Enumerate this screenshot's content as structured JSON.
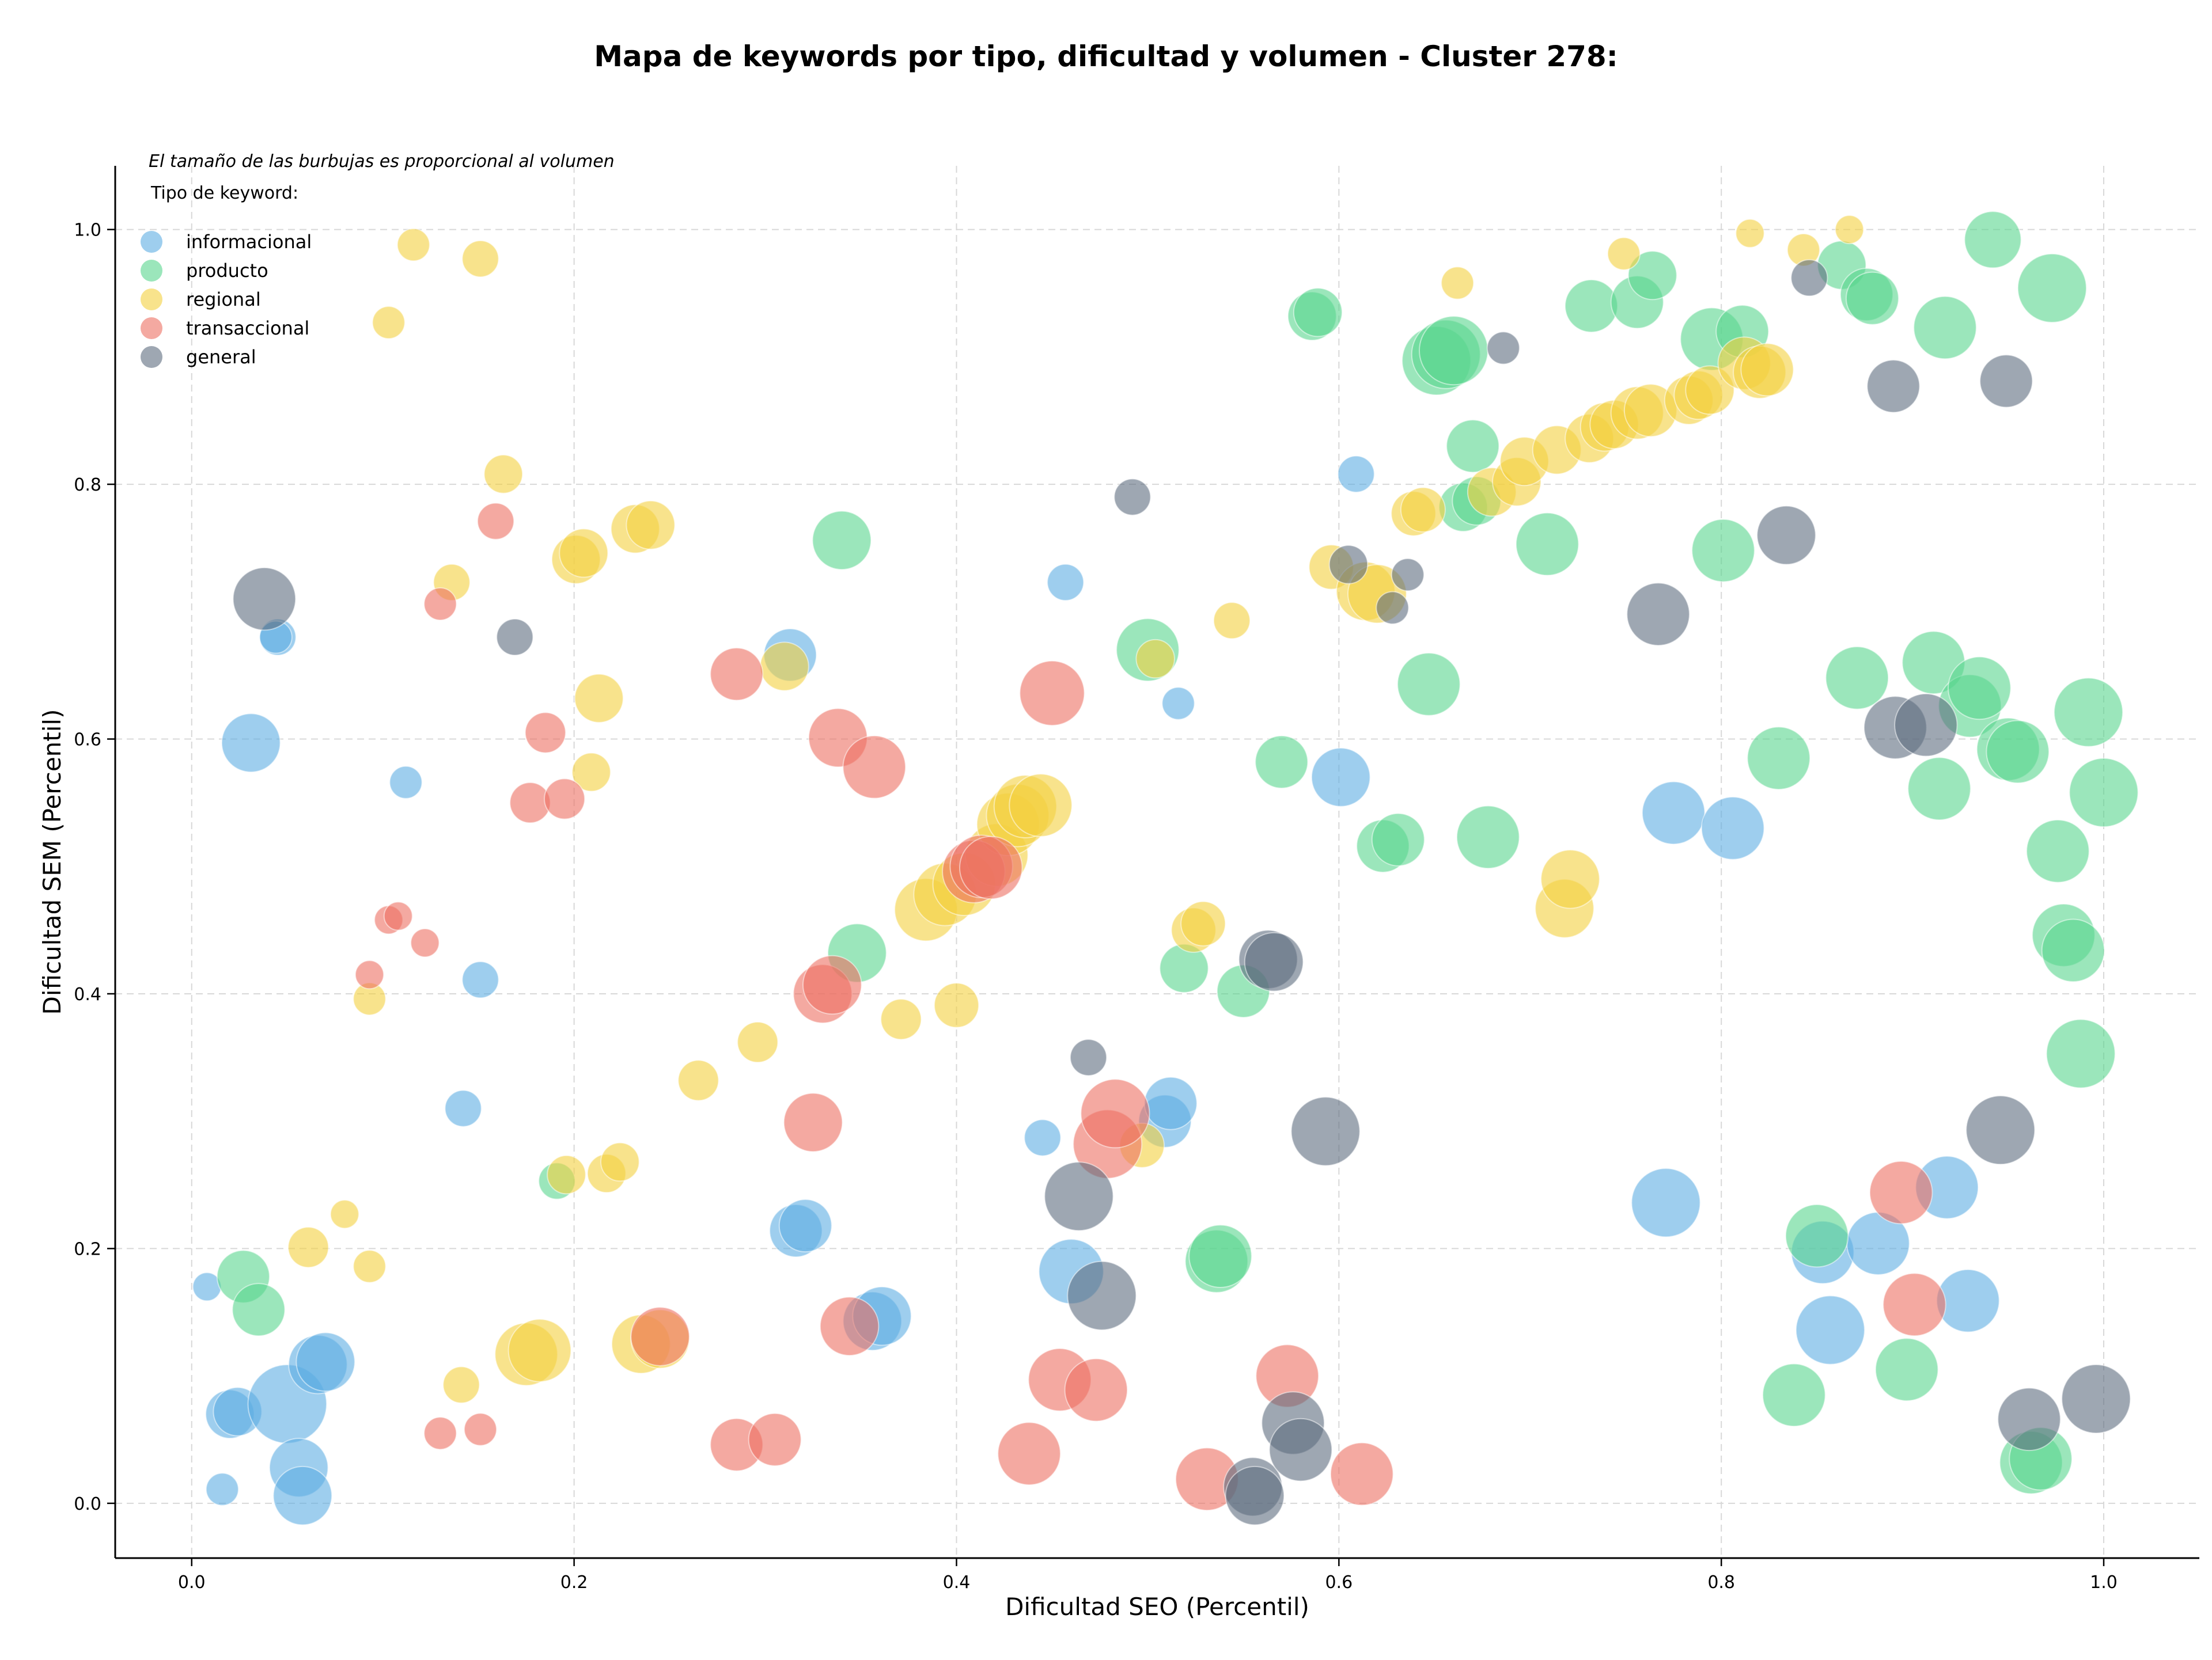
{
  "chart_data": {
    "type": "scatter",
    "title": "Mapa de keywords por tipo, dificultad y volumen - Cluster 278:",
    "xlabel": "Dificultad SEO (Percentil)",
    "ylabel": "Dificultad SEM (Percentil)",
    "xlim": [
      -0.04,
      1.05
    ],
    "ylim": [
      -0.043,
      1.05
    ],
    "x_ticks": [
      "0.0",
      "0.2",
      "0.4",
      "0.6",
      "0.8",
      "1.0"
    ],
    "y_ticks": [
      "0.0",
      "0.2",
      "0.4",
      "0.6",
      "0.8",
      "1.0"
    ],
    "grid": true,
    "size_note": "El tamaño de las burbujas es proporcional al volumen",
    "legend_title": "Tipo de keyword:",
    "legend_position": "top-left",
    "series": [
      {
        "name": "informacional",
        "color": "#5DADE2",
        "points": [
          [
            0.008,
            0.17,
            10
          ],
          [
            0.016,
            0.011,
            12
          ],
          [
            0.02,
            0.07,
            20
          ],
          [
            0.024,
            0.072,
            20
          ],
          [
            0.031,
            0.597,
            25
          ],
          [
            0.045,
            0.68,
            14
          ],
          [
            0.044,
            0.68,
            12
          ],
          [
            0.05,
            0.078,
            35
          ],
          [
            0.056,
            0.028,
            25
          ],
          [
            0.058,
            0.006,
            25
          ],
          [
            0.066,
            0.109,
            25
          ],
          [
            0.07,
            0.111,
            25
          ],
          [
            0.112,
            0.566,
            12
          ],
          [
            0.142,
            0.31,
            14
          ],
          [
            0.151,
            0.411,
            14
          ],
          [
            0.313,
            0.666,
            22
          ],
          [
            0.316,
            0.214,
            22
          ],
          [
            0.321,
            0.218,
            22
          ],
          [
            0.356,
            0.143,
            25
          ],
          [
            0.361,
            0.147,
            25
          ],
          [
            0.445,
            0.287,
            14
          ],
          [
            0.457,
            0.723,
            14
          ],
          [
            0.46,
            0.182,
            28
          ],
          [
            0.509,
            0.3,
            22
          ],
          [
            0.512,
            0.314,
            22
          ],
          [
            0.516,
            0.628,
            12
          ],
          [
            0.601,
            0.57,
            25
          ],
          [
            0.609,
            0.808,
            14
          ],
          [
            0.771,
            0.236,
            30
          ],
          [
            0.775,
            0.542,
            27
          ],
          [
            0.806,
            0.53,
            27
          ],
          [
            0.853,
            0.197,
            27
          ],
          [
            0.857,
            0.136,
            30
          ],
          [
            0.882,
            0.204,
            27
          ],
          [
            0.918,
            0.248,
            27
          ],
          [
            0.929,
            0.159,
            27
          ]
        ]
      },
      {
        "name": "producto",
        "color": "#58D68D",
        "points": [
          [
            0.027,
            0.178,
            22
          ],
          [
            0.035,
            0.152,
            22
          ],
          [
            0.191,
            0.253,
            14
          ],
          [
            0.34,
            0.756,
            25
          ],
          [
            0.348,
            0.432,
            25
          ],
          [
            0.5,
            0.67,
            27
          ],
          [
            0.519,
            0.42,
            20
          ],
          [
            0.536,
            0.19,
            27
          ],
          [
            0.538,
            0.194,
            27
          ],
          [
            0.55,
            0.402,
            22
          ],
          [
            0.57,
            0.582,
            22
          ],
          [
            0.586,
            0.932,
            20
          ],
          [
            0.589,
            0.935,
            20
          ],
          [
            0.623,
            0.516,
            22
          ],
          [
            0.631,
            0.521,
            22
          ],
          [
            0.647,
            0.643,
            27
          ],
          [
            0.651,
            0.897,
            30
          ],
          [
            0.656,
            0.902,
            30
          ],
          [
            0.66,
            0.905,
            30
          ],
          [
            0.665,
            0.782,
            20
          ],
          [
            0.67,
            0.83,
            22
          ],
          [
            0.672,
            0.787,
            20
          ],
          [
            0.678,
            0.523,
            27
          ],
          [
            0.709,
            0.753,
            27
          ],
          [
            0.732,
            0.94,
            22
          ],
          [
            0.756,
            0.943,
            22
          ],
          [
            0.764,
            0.964,
            20
          ],
          [
            0.795,
            0.914,
            27
          ],
          [
            0.801,
            0.748,
            27
          ],
          [
            0.811,
            0.92,
            22
          ],
          [
            0.83,
            0.585,
            27
          ],
          [
            0.838,
            0.085,
            27
          ],
          [
            0.85,
            0.21,
            27
          ],
          [
            0.863,
            0.972,
            20
          ],
          [
            0.871,
            0.648,
            27
          ],
          [
            0.876,
            0.949,
            22
          ],
          [
            0.879,
            0.946,
            22
          ],
          [
            0.897,
            0.105,
            27
          ],
          [
            0.914,
            0.561,
            27
          ],
          [
            0.917,
            0.923,
            27
          ],
          [
            0.911,
            0.66,
            27
          ],
          [
            0.93,
            0.626,
            27
          ],
          [
            0.935,
            0.64,
            27
          ],
          [
            0.942,
            0.992,
            24
          ],
          [
            0.95,
            0.592,
            27
          ],
          [
            0.955,
            0.59,
            27
          ],
          [
            0.962,
            0.032,
            27
          ],
          [
            0.967,
            0.035,
            27
          ],
          [
            0.973,
            0.954,
            30
          ],
          [
            0.976,
            0.512,
            27
          ],
          [
            0.979,
            0.446,
            27
          ],
          [
            0.984,
            0.434,
            27
          ],
          [
            0.988,
            0.353,
            30
          ],
          [
            0.992,
            0.621,
            30
          ],
          [
            1.0,
            0.558,
            30
          ]
        ]
      },
      {
        "name": "regional",
        "color": "#F4D03F",
        "points": [
          [
            0.061,
            0.201,
            16
          ],
          [
            0.08,
            0.227,
            10
          ],
          [
            0.093,
            0.396,
            12
          ],
          [
            0.093,
            0.186,
            12
          ],
          [
            0.103,
            0.927,
            12
          ],
          [
            0.116,
            0.988,
            12
          ],
          [
            0.136,
            0.723,
            14
          ],
          [
            0.141,
            0.093,
            14
          ],
          [
            0.151,
            0.977,
            14
          ],
          [
            0.163,
            0.808,
            15
          ],
          [
            0.175,
            0.117,
            27
          ],
          [
            0.182,
            0.12,
            27
          ],
          [
            0.196,
            0.258,
            15
          ],
          [
            0.201,
            0.741,
            20
          ],
          [
            0.205,
            0.746,
            20
          ],
          [
            0.209,
            0.574,
            15
          ],
          [
            0.213,
            0.632,
            20
          ],
          [
            0.217,
            0.259,
            15
          ],
          [
            0.224,
            0.268,
            15
          ],
          [
            0.232,
            0.765,
            20
          ],
          [
            0.24,
            0.768,
            20
          ],
          [
            0.235,
            0.125,
            25
          ],
          [
            0.245,
            0.129,
            25
          ],
          [
            0.31,
            0.657,
            20
          ],
          [
            0.265,
            0.332,
            16
          ],
          [
            0.296,
            0.362,
            16
          ],
          [
            0.371,
            0.38,
            16
          ],
          [
            0.384,
            0.466,
            27
          ],
          [
            0.394,
            0.478,
            27
          ],
          [
            0.4,
            0.391,
            18
          ],
          [
            0.404,
            0.486,
            27
          ],
          [
            0.421,
            0.509,
            27
          ],
          [
            0.427,
            0.533,
            27
          ],
          [
            0.432,
            0.54,
            27
          ],
          [
            0.436,
            0.547,
            27
          ],
          [
            0.444,
            0.548,
            27
          ],
          [
            0.497,
            0.281,
            18
          ],
          [
            0.504,
            0.663,
            15
          ],
          [
            0.524,
            0.45,
            18
          ],
          [
            0.529,
            0.455,
            18
          ],
          [
            0.544,
            0.693,
            14
          ],
          [
            0.596,
            0.735,
            18
          ],
          [
            0.614,
            0.716,
            25
          ],
          [
            0.62,
            0.714,
            25
          ],
          [
            0.639,
            0.777,
            18
          ],
          [
            0.644,
            0.78,
            18
          ],
          [
            0.662,
            0.958,
            12
          ],
          [
            0.68,
            0.794,
            20
          ],
          [
            0.693,
            0.802,
            20
          ],
          [
            0.697,
            0.818,
            20
          ],
          [
            0.714,
            0.827,
            20
          ],
          [
            0.718,
            0.467,
            25
          ],
          [
            0.721,
            0.49,
            25
          ],
          [
            0.731,
            0.836,
            20
          ],
          [
            0.739,
            0.845,
            20
          ],
          [
            0.744,
            0.847,
            20
          ],
          [
            0.749,
            0.981,
            12
          ],
          [
            0.756,
            0.856,
            22
          ],
          [
            0.763,
            0.858,
            22
          ],
          [
            0.783,
            0.866,
            20
          ],
          [
            0.788,
            0.87,
            20
          ],
          [
            0.794,
            0.874,
            20
          ],
          [
            0.812,
            0.895,
            22
          ],
          [
            0.82,
            0.888,
            22
          ],
          [
            0.824,
            0.89,
            22
          ],
          [
            0.815,
            0.997,
            10
          ],
          [
            0.843,
            0.984,
            12
          ],
          [
            0.867,
            1.0,
            10
          ]
        ]
      },
      {
        "name": "transaccional",
        "color": "#EC7063",
        "points": [
          [
            0.093,
            0.415,
            10
          ],
          [
            0.103,
            0.458,
            10
          ],
          [
            0.108,
            0.461,
            10
          ],
          [
            0.122,
            0.44,
            10
          ],
          [
            0.13,
            0.055,
            12
          ],
          [
            0.13,
            0.706,
            12
          ],
          [
            0.151,
            0.058,
            12
          ],
          [
            0.159,
            0.771,
            14
          ],
          [
            0.177,
            0.55,
            16
          ],
          [
            0.185,
            0.605,
            16
          ],
          [
            0.195,
            0.553,
            16
          ],
          [
            0.245,
            0.131,
            25
          ],
          [
            0.285,
            0.651,
            22
          ],
          [
            0.285,
            0.046,
            22
          ],
          [
            0.305,
            0.05,
            22
          ],
          [
            0.325,
            0.299,
            25
          ],
          [
            0.33,
            0.4,
            25
          ],
          [
            0.335,
            0.407,
            25
          ],
          [
            0.338,
            0.601,
            25
          ],
          [
            0.344,
            0.139,
            25
          ],
          [
            0.357,
            0.578,
            27
          ],
          [
            0.409,
            0.496,
            27
          ],
          [
            0.413,
            0.5,
            27
          ],
          [
            0.418,
            0.499,
            27
          ],
          [
            0.438,
            0.039,
            27
          ],
          [
            0.45,
            0.636,
            28
          ],
          [
            0.454,
            0.097,
            27
          ],
          [
            0.473,
            0.089,
            27
          ],
          [
            0.479,
            0.282,
            30
          ],
          [
            0.483,
            0.306,
            30
          ],
          [
            0.531,
            0.019,
            27
          ],
          [
            0.573,
            0.1,
            27
          ],
          [
            0.612,
            0.023,
            27
          ],
          [
            0.894,
            0.244,
            27
          ],
          [
            0.901,
            0.156,
            27
          ]
        ]
      },
      {
        "name": "general",
        "color": "#5D6D7E",
        "points": [
          [
            0.038,
            0.71,
            27
          ],
          [
            0.169,
            0.68,
            14
          ],
          [
            0.492,
            0.79,
            14
          ],
          [
            0.469,
            0.35,
            14
          ],
          [
            0.464,
            0.241,
            30
          ],
          [
            0.476,
            0.163,
            30
          ],
          [
            0.563,
            0.427,
            25
          ],
          [
            0.566,
            0.425,
            25
          ],
          [
            0.555,
            0.013,
            25
          ],
          [
            0.556,
            0.006,
            25
          ],
          [
            0.576,
            0.063,
            27
          ],
          [
            0.58,
            0.042,
            27
          ],
          [
            0.593,
            0.292,
            30
          ],
          [
            0.605,
            0.737,
            15
          ],
          [
            0.628,
            0.703,
            12
          ],
          [
            0.636,
            0.729,
            12
          ],
          [
            0.686,
            0.907,
            12
          ],
          [
            0.767,
            0.698,
            27
          ],
          [
            0.834,
            0.76,
            25
          ],
          [
            0.846,
            0.962,
            14
          ],
          [
            0.89,
            0.877,
            22
          ],
          [
            0.891,
            0.609,
            27
          ],
          [
            0.907,
            0.611,
            27
          ],
          [
            0.946,
            0.293,
            30
          ],
          [
            0.949,
            0.881,
            22
          ],
          [
            0.961,
            0.066,
            27
          ],
          [
            0.996,
            0.082,
            30
          ]
        ]
      }
    ]
  }
}
